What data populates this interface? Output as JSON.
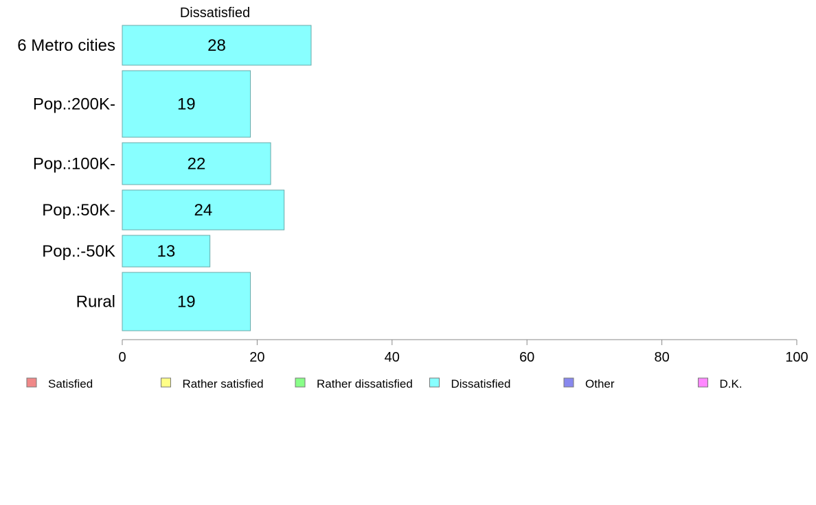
{
  "chart_data": {
    "type": "bar",
    "orientation": "horizontal",
    "title": "Dissatisfied",
    "categories": [
      "6 Metro cities",
      "Pop.:200K-",
      "Pop.:100K-",
      "Pop.:50K-",
      "Pop.:-50K",
      "Rural"
    ],
    "values": [
      28,
      19,
      22,
      24,
      13,
      19
    ],
    "xlim": [
      0,
      100
    ],
    "x_ticks": [
      0,
      20,
      40,
      60,
      80,
      100
    ],
    "bar_color": "#88ffff",
    "bar_stroke": "#6aa8a8",
    "grid": false,
    "legend_position": "bottom",
    "legend": [
      {
        "label": "Satisfied",
        "color": "#f08888"
      },
      {
        "label": "Rather satisfied",
        "color": "#ffff88"
      },
      {
        "label": "Rather dissatisfied",
        "color": "#88ff88"
      },
      {
        "label": "Dissatisfied",
        "color": "#88ffff"
      },
      {
        "label": "Other",
        "color": "#8888ee"
      },
      {
        "label": "D.K.",
        "color": "#ff88ff"
      }
    ]
  }
}
